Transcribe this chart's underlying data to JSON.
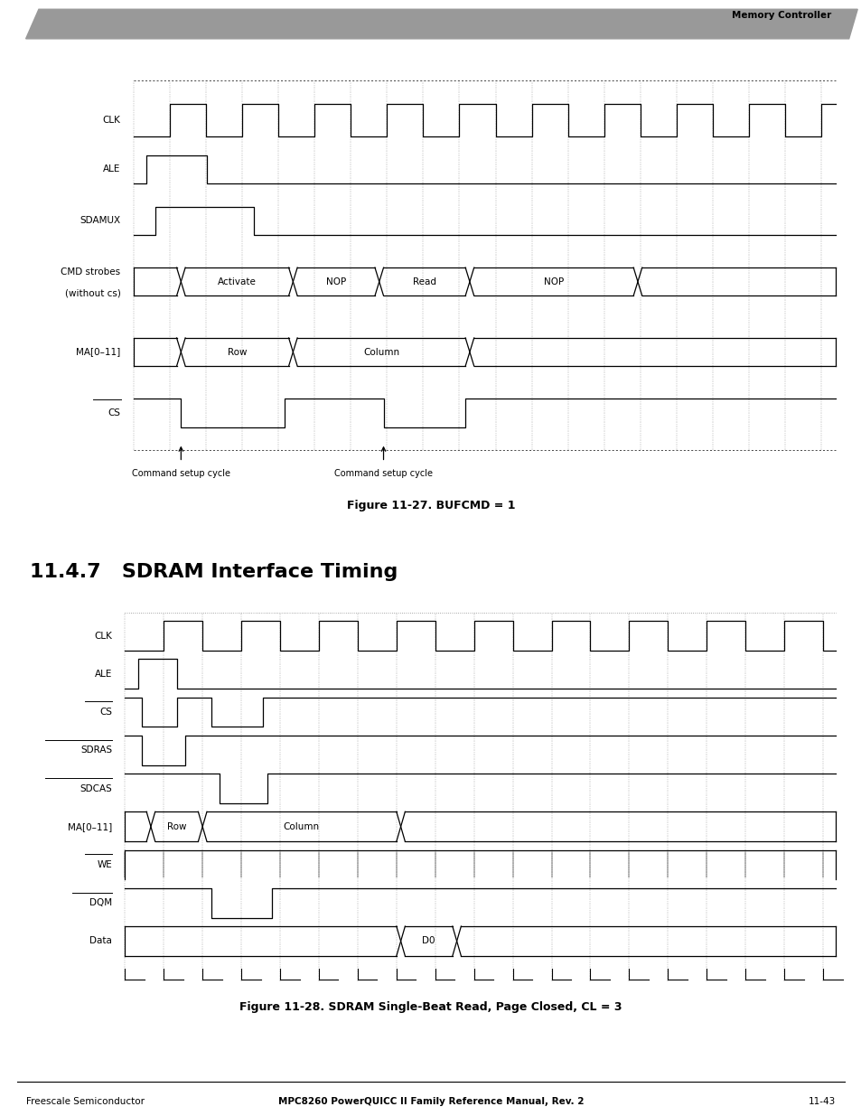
{
  "page_header_text": "Memory Controller",
  "header_bar_color": "#999999",
  "fig1_caption": "Figure 11-27. BUFCMD = 1",
  "fig2_caption": "Figure 11-28. SDRAM Single-Beat Read, Page Closed, CL = 3",
  "section_title": "11.4.7   SDRAM Interface Timing",
  "footer_left": "Freescale Semiconductor",
  "footer_center": "MPC8260 PowerQUICC II Family Reference Manual, Rev. 2",
  "footer_right": "11-43",
  "cmd_setup_label": "Command setup cycle",
  "bg_color": "#ffffff",
  "label_fontsize": 7.5,
  "caption_fontsize": 9,
  "section_fontsize": 16,
  "lw": 0.9
}
